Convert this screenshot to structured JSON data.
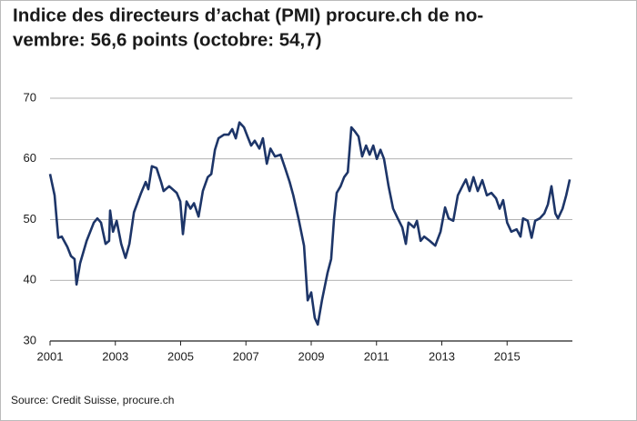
{
  "chart_data": {
    "type": "line",
    "title": [
      "Indice des directeurs d’achat (PMI) procure.ch de no-",
      "vembre: 56,6 points (octobre: 54,7)"
    ],
    "source": "Source: Credit Suisse, procure.ch",
    "xlim": [
      2001,
      2017
    ],
    "xticks": [
      2001,
      2003,
      2005,
      2007,
      2009,
      2011,
      2013,
      2015
    ],
    "ylim": [
      30,
      70
    ],
    "yticks": [
      30,
      40,
      50,
      60,
      70
    ],
    "grid": true,
    "series": [
      {
        "color": "#1d3568",
        "x": [
          2001.0,
          2001.14,
          2001.25,
          2001.36,
          2001.53,
          2001.64,
          2001.75,
          2001.81,
          2001.92,
          2002.12,
          2002.34,
          2002.45,
          2002.56,
          2002.7,
          2002.81,
          2002.84,
          2002.93,
          2003.04,
          2003.18,
          2003.31,
          2003.43,
          2003.57,
          2003.79,
          2003.93,
          2004.01,
          2004.12,
          2004.26,
          2004.4,
          2004.48,
          2004.65,
          2004.88,
          2004.99,
          2005.07,
          2005.18,
          2005.3,
          2005.41,
          2005.55,
          2005.68,
          2005.83,
          2005.94,
          2006.05,
          2006.16,
          2006.33,
          2006.47,
          2006.58,
          2006.69,
          2006.8,
          2006.94,
          2007.05,
          2007.16,
          2007.27,
          2007.41,
          2007.52,
          2007.64,
          2007.75,
          2007.89,
          2008.06,
          2008.2,
          2008.34,
          2008.45,
          2008.61,
          2008.78,
          2008.89,
          2009.0,
          2009.11,
          2009.2,
          2009.33,
          2009.5,
          2009.61,
          2009.7,
          2009.78,
          2009.9,
          2010.01,
          2010.12,
          2010.23,
          2010.34,
          2010.45,
          2010.56,
          2010.68,
          2010.79,
          2010.9,
          2011.01,
          2011.12,
          2011.23,
          2011.37,
          2011.51,
          2011.65,
          2011.79,
          2011.9,
          2011.98,
          2012.15,
          2012.24,
          2012.35,
          2012.46,
          2012.63,
          2012.8,
          2012.96,
          2013.1,
          2013.21,
          2013.35,
          2013.49,
          2013.63,
          2013.74,
          2013.85,
          2013.97,
          2014.1,
          2014.24,
          2014.38,
          2014.52,
          2014.66,
          2014.77,
          2014.88,
          2015.0,
          2015.13,
          2015.29,
          2015.41,
          2015.49,
          2015.63,
          2015.75,
          2015.86,
          2016.0,
          2016.14,
          2016.25,
          2016.36,
          2016.48,
          2016.56,
          2016.7,
          2016.81,
          2016.92
        ],
        "values": [
          57.5,
          54,
          47,
          47.2,
          45.5,
          44,
          43.5,
          39.3,
          42.8,
          46.5,
          49.5,
          50.2,
          49.5,
          46,
          46.5,
          51.5,
          48,
          49.8,
          46,
          43.7,
          46,
          51.2,
          54.4,
          56.2,
          55,
          58.8,
          58.5,
          56.2,
          54.7,
          55.5,
          54.4,
          53,
          47.6,
          53,
          51.8,
          52.7,
          50.5,
          54.7,
          57,
          57.5,
          61.5,
          63.4,
          64,
          64,
          64.9,
          63.4,
          66,
          65.2,
          63.7,
          62.2,
          63,
          61.7,
          63.4,
          59.2,
          61.7,
          60.4,
          60.7,
          58.5,
          56.2,
          54,
          50.2,
          45.7,
          36.7,
          38,
          33.8,
          32.7,
          36.7,
          41.2,
          43.5,
          50.2,
          54.4,
          55.5,
          57,
          57.8,
          65.2,
          64.5,
          63.7,
          60.4,
          62.2,
          60.7,
          62.2,
          60,
          61.5,
          60,
          55.5,
          51.8,
          50.2,
          48.7,
          46,
          49.5,
          48.7,
          49.8,
          46.5,
          47.2,
          46.5,
          45.7,
          48,
          52,
          50.2,
          49.8,
          54,
          55.5,
          56.6,
          54.7,
          57,
          54.7,
          56.5,
          54,
          54.4,
          53.5,
          51.8,
          53.2,
          49.5,
          48,
          48.4,
          47.2,
          50.2,
          49.8,
          47,
          49.8,
          50.2,
          51,
          52.5,
          55.5,
          51,
          50.2,
          51.8,
          54,
          56.6
        ]
      }
    ]
  }
}
